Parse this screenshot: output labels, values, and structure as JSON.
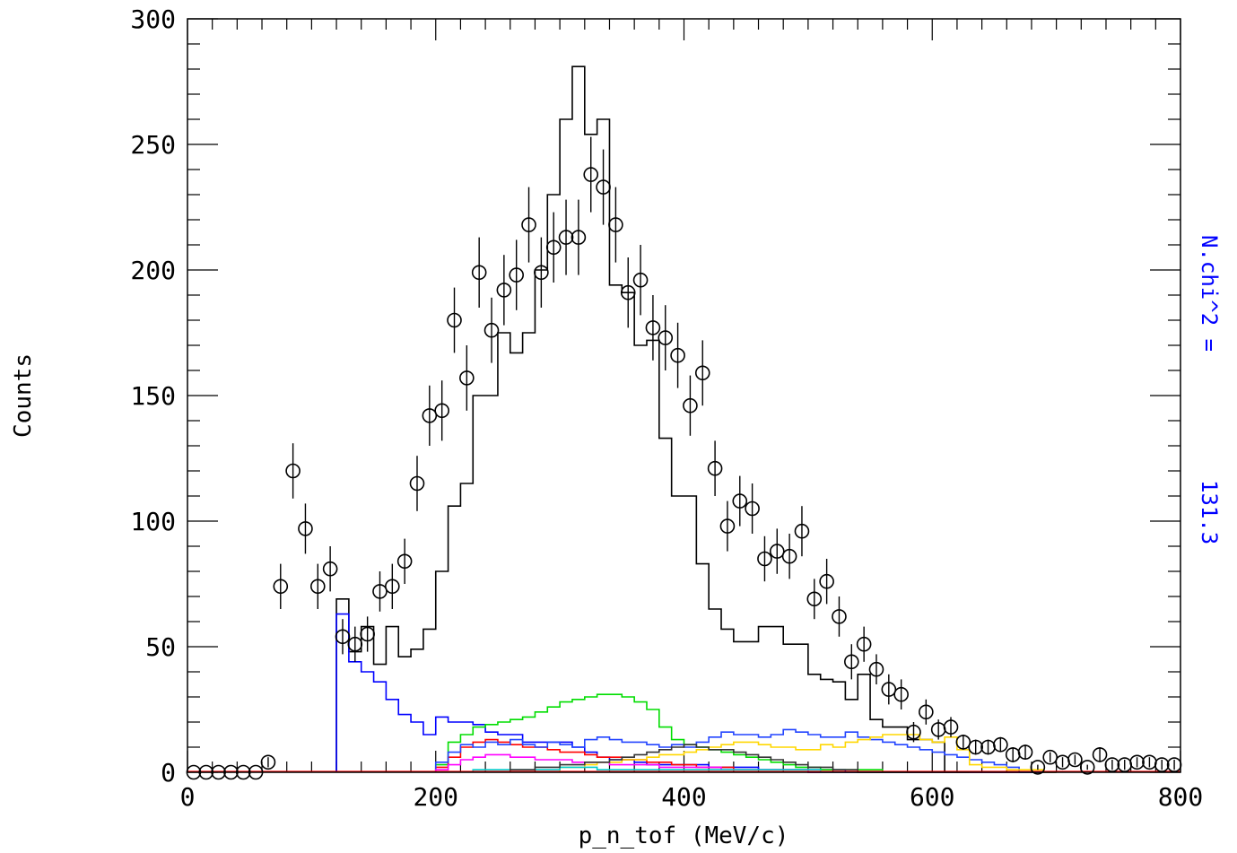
{
  "chart_data": {
    "type": "histogram",
    "xlabel": "p_n_tof (MeV/c)",
    "ylabel": "Counts",
    "xlim": [
      0,
      800
    ],
    "ylim": [
      0,
      300
    ],
    "x_ticks": [
      "0",
      "200",
      "400",
      "600",
      "800"
    ],
    "y_ticks": [
      "0",
      "50",
      "100",
      "150",
      "200",
      "250",
      "300"
    ],
    "annotation": {
      "label": "N.chi^2 =",
      "value": "131.3",
      "color": "#0000ff"
    },
    "data_points": {
      "x": [
        5,
        15,
        25,
        35,
        45,
        55,
        65,
        75,
        85,
        95,
        105,
        115,
        125,
        135,
        145,
        155,
        165,
        175,
        185,
        195,
        205,
        215,
        225,
        235,
        245,
        255,
        265,
        275,
        285,
        295,
        305,
        315,
        325,
        335,
        345,
        355,
        365,
        375,
        385,
        395,
        405,
        415,
        425,
        435,
        445,
        455,
        465,
        475,
        485,
        495,
        505,
        515,
        525,
        535,
        545,
        555,
        565,
        575,
        585,
        595,
        605,
        615,
        625,
        635,
        645,
        655,
        665,
        675,
        685,
        695,
        705,
        715,
        725,
        735,
        745,
        755,
        765,
        775,
        785,
        795
      ],
      "y": [
        0,
        0,
        0,
        0,
        0,
        0,
        4,
        74,
        120,
        97,
        74,
        81,
        54,
        51,
        55,
        72,
        74,
        84,
        115,
        142,
        144,
        180,
        157,
        199,
        176,
        192,
        198,
        218,
        199,
        209,
        213,
        213,
        238,
        233,
        218,
        191,
        196,
        177,
        173,
        166,
        146,
        159,
        121,
        98,
        108,
        105,
        85,
        88,
        86,
        96,
        69,
        76,
        62,
        44,
        51,
        41,
        33,
        31,
        16,
        24,
        17,
        18,
        12,
        10,
        10,
        11,
        7,
        8,
        2,
        6,
        4,
        5,
        2,
        7,
        3,
        3,
        4,
        4,
        3,
        3
      ],
      "err": [
        0,
        0,
        0,
        0,
        0,
        0,
        2,
        9,
        11,
        10,
        9,
        9,
        7,
        7,
        7,
        8,
        9,
        9,
        11,
        12,
        12,
        13,
        13,
        14,
        13,
        14,
        14,
        15,
        14,
        14,
        15,
        15,
        15,
        15,
        15,
        14,
        14,
        13,
        13,
        13,
        12,
        13,
        11,
        10,
        10,
        10,
        9,
        9,
        9,
        10,
        8,
        9,
        8,
        7,
        7,
        6,
        6,
        6,
        4,
        5,
        4,
        4,
        3,
        3,
        3,
        3,
        3,
        3,
        1,
        2,
        2,
        2,
        1,
        3,
        2,
        2,
        2,
        2,
        2,
        2
      ]
    },
    "series": [
      {
        "name": "",
        "color": "#000000",
        "x_start": 120,
        "bin_width": 10,
        "values": [
          69,
          48,
          58,
          43,
          58,
          46,
          49,
          57,
          80,
          106,
          115,
          150,
          150,
          175,
          167,
          175,
          200,
          230,
          260,
          281,
          254,
          260,
          194,
          191,
          170,
          172,
          133,
          110,
          110,
          83,
          65,
          57,
          52,
          52,
          58,
          58,
          51,
          51,
          39,
          37,
          36,
          29,
          39,
          21,
          18,
          18,
          13,
          13,
          12,
          0,
          0,
          0,
          0,
          0,
          0,
          0,
          0,
          0
        ]
      },
      {
        "name": "",
        "color": "#0000ff",
        "x_start": 120,
        "bin_width": 10,
        "values": [
          63,
          44,
          40,
          36,
          29,
          23,
          20,
          15,
          22,
          20,
          20,
          19,
          16,
          15,
          15,
          12,
          12,
          12,
          12,
          10,
          8,
          6,
          5,
          5,
          4,
          3,
          3,
          3,
          3,
          3,
          2,
          2,
          2,
          2,
          1,
          1,
          1,
          1,
          1,
          1,
          1,
          0,
          0,
          0,
          0,
          0,
          0,
          0,
          0,
          0,
          0,
          0,
          0,
          0,
          0,
          0,
          0,
          0
        ]
      },
      {
        "name": "",
        "color": "#00dd00",
        "x_start": 200,
        "bin_width": 10,
        "values": [
          3,
          12,
          15,
          18,
          19,
          20,
          21,
          22,
          24,
          26,
          28,
          29,
          30,
          31,
          31,
          30,
          28,
          25,
          18,
          13,
          11,
          10,
          9,
          8,
          7,
          6,
          5,
          4,
          3,
          2,
          2,
          1,
          1,
          1,
          1,
          1,
          0,
          0,
          0,
          0,
          0,
          0,
          0,
          0,
          0,
          0,
          0
        ]
      },
      {
        "name": "",
        "color": "#ff0000",
        "x_start": 200,
        "bin_width": 10,
        "values": [
          2,
          6,
          10,
          12,
          13,
          12,
          11,
          10,
          10,
          9,
          8,
          8,
          7,
          6,
          6,
          5,
          5,
          4,
          4,
          3,
          3,
          2,
          2,
          2,
          1,
          1,
          1,
          1,
          1,
          1,
          0,
          0,
          0,
          0,
          0,
          0,
          0,
          0,
          0,
          0,
          0,
          0,
          0,
          0,
          0,
          0,
          0
        ]
      },
      {
        "name": "",
        "color": "#2244ff",
        "x_start": 200,
        "bin_width": 10,
        "values": [
          4,
          8,
          11,
          10,
          12,
          11,
          13,
          11,
          10,
          12,
          11,
          10,
          13,
          14,
          13,
          12,
          12,
          11,
          10,
          11,
          10,
          12,
          14,
          16,
          15,
          15,
          14,
          15,
          17,
          16,
          15,
          14,
          14,
          16,
          14,
          13,
          12,
          11,
          10,
          9,
          8,
          7,
          6,
          5,
          4,
          3,
          2
        ]
      },
      {
        "name": "",
        "color": "#ff00ff",
        "x_start": 200,
        "bin_width": 10,
        "values": [
          1,
          3,
          5,
          6,
          7,
          7,
          6,
          6,
          5,
          5,
          5,
          4,
          4,
          4,
          3,
          3,
          3,
          3,
          2,
          2,
          2,
          2,
          2,
          1,
          1,
          1,
          1,
          1,
          1,
          1,
          0,
          0,
          0,
          0,
          0,
          0,
          0,
          0,
          0,
          0,
          0,
          0,
          0,
          0,
          0,
          0,
          0
        ]
      },
      {
        "name": "",
        "color": "#ffd700",
        "x_start": 300,
        "bin_width": 10,
        "values": [
          2,
          2,
          3,
          4,
          4,
          5,
          5,
          6,
          7,
          7,
          8,
          9,
          10,
          11,
          12,
          12,
          11,
          10,
          10,
          9,
          9,
          11,
          10,
          12,
          13,
          14,
          15,
          15,
          15,
          13,
          12,
          14,
          9,
          3,
          2,
          2,
          1,
          1,
          1,
          0
        ]
      },
      {
        "name": "",
        "color": "#00cccc",
        "x_start": 230,
        "bin_width": 10,
        "values": [
          1,
          1,
          1,
          1,
          1,
          1,
          1,
          2,
          2,
          2,
          1,
          1,
          1,
          1,
          1,
          1,
          1,
          1,
          1,
          1,
          1,
          1,
          1,
          1,
          1,
          1,
          1,
          1,
          0,
          0,
          0,
          0,
          0,
          0,
          0
        ]
      },
      {
        "name": "",
        "color": "#333333",
        "x_start": 260,
        "bin_width": 10,
        "values": [
          1,
          1,
          2,
          2,
          3,
          3,
          4,
          4,
          5,
          6,
          7,
          8,
          9,
          10,
          11,
          10,
          9,
          9,
          8,
          7,
          6,
          5,
          4,
          3,
          2,
          2,
          1,
          1,
          0,
          0,
          0,
          0,
          0,
          0,
          0,
          0,
          0
        ]
      }
    ]
  }
}
